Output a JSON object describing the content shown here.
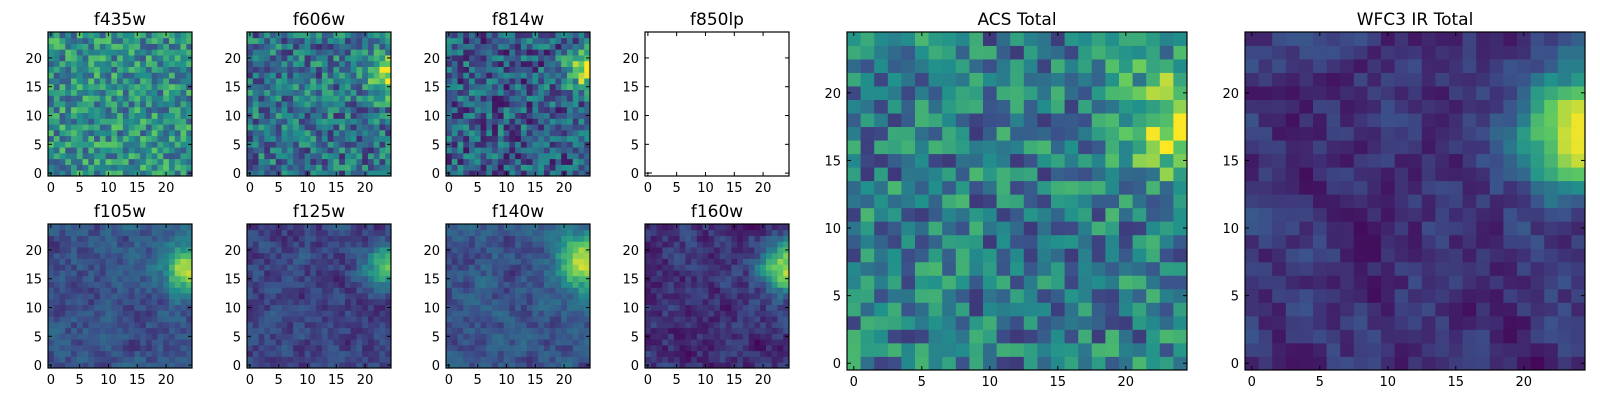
{
  "colormap": [
    "#440154",
    "#3b528b",
    "#21918c",
    "#5ec962",
    "#fde725"
  ],
  "chart_data": [
    {
      "type": "heatmap",
      "title": "f435w",
      "grid": [
        25,
        25
      ],
      "xlim": [
        0,
        25
      ],
      "ylim": [
        0,
        25
      ],
      "xticks": [
        0,
        5,
        10,
        15,
        20
      ],
      "yticks": [
        0,
        5,
        10,
        15,
        20
      ],
      "has_data": true,
      "style": "noise",
      "base": 0.5,
      "hotspot": null
    },
    {
      "type": "heatmap",
      "title": "f606w",
      "grid": [
        25,
        25
      ],
      "xlim": [
        0,
        25
      ],
      "ylim": [
        0,
        25
      ],
      "xticks": [
        0,
        5,
        10,
        15,
        20
      ],
      "yticks": [
        0,
        5,
        10,
        15,
        20
      ],
      "has_data": true,
      "style": "noise",
      "base": 0.38,
      "hotspot": {
        "x": 24,
        "y": 17,
        "amp": 0.55,
        "sigma": 2.5
      }
    },
    {
      "type": "heatmap",
      "title": "f814w",
      "grid": [
        25,
        25
      ],
      "xlim": [
        0,
        25
      ],
      "ylim": [
        0,
        25
      ],
      "xticks": [
        0,
        5,
        10,
        15,
        20
      ],
      "yticks": [
        0,
        5,
        10,
        15,
        20
      ],
      "has_data": true,
      "style": "noise",
      "base": 0.3,
      "hotspot": {
        "x": 24,
        "y": 18,
        "amp": 0.6,
        "sigma": 2.5
      }
    },
    {
      "type": "heatmap",
      "title": "f850lp",
      "grid": [
        25,
        25
      ],
      "xlim": [
        0,
        25
      ],
      "ylim": [
        0,
        25
      ],
      "xticks": [
        0,
        5,
        10,
        15,
        20
      ],
      "yticks": [
        0,
        5,
        10,
        15,
        20
      ],
      "has_data": false,
      "style": "empty",
      "base": 0,
      "hotspot": null
    },
    {
      "type": "heatmap",
      "title": "f105w",
      "grid": [
        25,
        25
      ],
      "xlim": [
        0,
        25
      ],
      "ylim": [
        0,
        25
      ],
      "xticks": [
        0,
        5,
        10,
        15,
        20
      ],
      "yticks": [
        0,
        5,
        10,
        15,
        20
      ],
      "has_data": true,
      "style": "smooth",
      "base": 0.25,
      "hotspot": {
        "x": 24,
        "y": 17,
        "amp": 0.65,
        "sigma": 3.0
      }
    },
    {
      "type": "heatmap",
      "title": "f125w",
      "grid": [
        25,
        25
      ],
      "xlim": [
        0,
        25
      ],
      "ylim": [
        0,
        25
      ],
      "xticks": [
        0,
        5,
        10,
        15,
        20
      ],
      "yticks": [
        0,
        5,
        10,
        15,
        20
      ],
      "has_data": true,
      "style": "smooth",
      "base": 0.2,
      "hotspot": {
        "x": 24,
        "y": 17,
        "amp": 0.55,
        "sigma": 2.5
      }
    },
    {
      "type": "heatmap",
      "title": "f140w",
      "grid": [
        25,
        25
      ],
      "xlim": [
        0,
        25
      ],
      "ylim": [
        0,
        25
      ],
      "xticks": [
        0,
        5,
        10,
        15,
        20
      ],
      "yticks": [
        0,
        5,
        10,
        15,
        20
      ],
      "has_data": true,
      "style": "smooth",
      "base": 0.25,
      "hotspot": {
        "x": 24,
        "y": 18,
        "amp": 0.7,
        "sigma": 3.5
      }
    },
    {
      "type": "heatmap",
      "title": "f160w",
      "grid": [
        25,
        25
      ],
      "xlim": [
        0,
        25
      ],
      "ylim": [
        0,
        25
      ],
      "xticks": [
        0,
        5,
        10,
        15,
        20
      ],
      "yticks": [
        0,
        5,
        10,
        15,
        20
      ],
      "has_data": true,
      "style": "smooth",
      "base": 0.15,
      "hotspot": {
        "x": 24,
        "y": 17,
        "amp": 0.75,
        "sigma": 3.0
      }
    },
    {
      "type": "heatmap",
      "title": "ACS Total",
      "grid": [
        25,
        25
      ],
      "xlim": [
        0,
        25
      ],
      "ylim": [
        0,
        25
      ],
      "xticks": [
        0,
        5,
        10,
        15,
        20
      ],
      "yticks": [
        0,
        5,
        10,
        15,
        20
      ],
      "has_data": true,
      "style": "noise",
      "base": 0.42,
      "hotspot": {
        "x": 24,
        "y": 18,
        "amp": 0.5,
        "sigma": 3.0
      }
    },
    {
      "type": "heatmap",
      "title": "WFC3 IR Total",
      "grid": [
        25,
        25
      ],
      "xlim": [
        0,
        25
      ],
      "ylim": [
        0,
        25
      ],
      "xticks": [
        0,
        5,
        10,
        15,
        20
      ],
      "yticks": [
        0,
        5,
        10,
        15,
        20
      ],
      "has_data": true,
      "style": "smooth",
      "base": 0.15,
      "hotspot": {
        "x": 24,
        "y": 17,
        "amp": 0.8,
        "sigma": 3.2
      }
    }
  ]
}
